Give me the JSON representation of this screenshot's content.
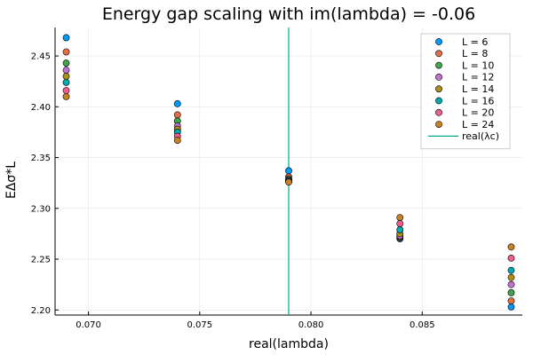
{
  "chart_data": {
    "type": "scatter",
    "title": "Energy gap scaling with im(lambda) = -0.06",
    "xlabel": "real(lambda)",
    "ylabel": "EΔσ*L",
    "xlim": [
      0.0685,
      0.0895
    ],
    "ylim": [
      2.195,
      2.478
    ],
    "x_ticks": [
      0.07,
      0.075,
      0.08,
      0.085
    ],
    "x_tick_labels": [
      "0.070",
      "0.075",
      "0.080",
      "0.085"
    ],
    "y_ticks": [
      2.2,
      2.25,
      2.3,
      2.35,
      2.4,
      2.45
    ],
    "y_tick_labels": [
      "2.20",
      "2.25",
      "2.30",
      "2.35",
      "2.40",
      "2.45"
    ],
    "grid": true,
    "legend_position": "top-right",
    "x": [
      0.069,
      0.074,
      0.079,
      0.084,
      0.089
    ],
    "series": [
      {
        "name": "L = 6",
        "color": "#009AFA",
        "values": [
          2.468,
          2.403,
          2.337,
          2.27,
          2.203
        ]
      },
      {
        "name": "L = 8",
        "color": "#E36F47",
        "values": [
          2.454,
          2.392,
          2.331,
          2.271,
          2.209
        ]
      },
      {
        "name": "L = 10",
        "color": "#3EA44E",
        "values": [
          2.443,
          2.386,
          2.329,
          2.272,
          2.217
        ]
      },
      {
        "name": "L = 12",
        "color": "#C371D2",
        "values": [
          2.436,
          2.381,
          2.328,
          2.273,
          2.225
        ]
      },
      {
        "name": "L = 14",
        "color": "#AC8E18",
        "values": [
          2.43,
          2.378,
          2.327,
          2.275,
          2.232
        ]
      },
      {
        "name": "L = 16",
        "color": "#00AAAE",
        "values": [
          2.424,
          2.375,
          2.327,
          2.279,
          2.239
        ]
      },
      {
        "name": "L = 20",
        "color": "#ED5E93",
        "values": [
          2.416,
          2.371,
          2.326,
          2.285,
          2.251
        ]
      },
      {
        "name": "L = 24",
        "color": "#C68225",
        "values": [
          2.41,
          2.367,
          2.326,
          2.291,
          2.262
        ]
      }
    ],
    "vline": {
      "name": "real(λc)",
      "color": "#00A98D",
      "x": 0.079
    }
  }
}
